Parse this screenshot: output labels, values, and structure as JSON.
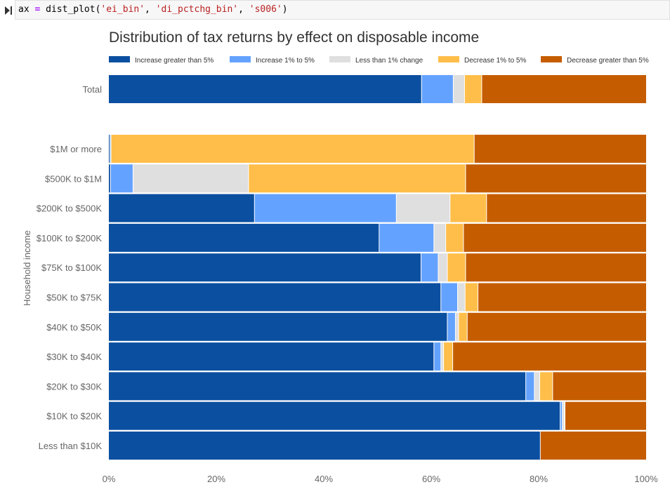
{
  "cell": {
    "code_var": "ax",
    "code_op": "=",
    "code_func": "dist_plot(",
    "code_arg1": "'ei_bin'",
    "code_arg2": "'di_pctchg_bin'",
    "code_arg3": "'s006'",
    "code_sep": ", ",
    "code_close": ")"
  },
  "chart_data": {
    "type": "bar",
    "orientation": "horizontal",
    "stacked": true,
    "normalized": true,
    "title": "Distribution of tax returns by effect on disposable income",
    "xlabel": "",
    "ylabel": "Household income",
    "xlim": [
      0,
      100
    ],
    "x_ticks": [
      "0%",
      "20%",
      "40%",
      "60%",
      "80%",
      "100%"
    ],
    "legend_position": "top",
    "total": {
      "label": "Total",
      "values": [
        58.2,
        5.9,
        2.1,
        3.2,
        30.6
      ]
    },
    "categories": [
      "$1M or more",
      "$500K to $1M",
      "$200K to $500K",
      "$100K to $200K",
      "$75K to $100K",
      "$50K to $75K",
      "$40K to $50K",
      "$30K to $40K",
      "$20K to $30K",
      "$10K to $20K",
      "Less than $10K"
    ],
    "series": [
      {
        "name": "Increase greater than 5%",
        "color": "#0b4fa0",
        "values": [
          0.2,
          0.3,
          27.1,
          50.3,
          58.1,
          61.8,
          63.0,
          60.5,
          77.6,
          84.0,
          80.3
        ]
      },
      {
        "name": "Increase 1% to 5%",
        "color": "#64a2ff",
        "values": [
          0.2,
          4.2,
          26.4,
          10.2,
          3.2,
          3.1,
          1.5,
          1.3,
          1.6,
          0.4,
          0.0
        ]
      },
      {
        "name": "Less than 1% change",
        "color": "#dfdfdf",
        "values": [
          0.0,
          21.5,
          10.0,
          2.2,
          1.7,
          1.4,
          0.6,
          0.5,
          1.0,
          0.4,
          0.0
        ]
      },
      {
        "name": "Decrease 1% to 5%",
        "color": "#ffbe4a",
        "values": [
          67.6,
          40.4,
          6.8,
          3.3,
          3.4,
          2.4,
          1.6,
          1.7,
          2.4,
          0.1,
          0.0
        ]
      },
      {
        "name": "Decrease greater than 5%",
        "color": "#c55d00",
        "values": [
          32.0,
          33.6,
          29.7,
          34.0,
          33.6,
          31.3,
          33.3,
          36.0,
          17.4,
          15.1,
          19.7
        ]
      }
    ],
    "colors": {
      "tick_text": "#666666",
      "title_text": "#333333",
      "legend_text": "#333333"
    }
  }
}
